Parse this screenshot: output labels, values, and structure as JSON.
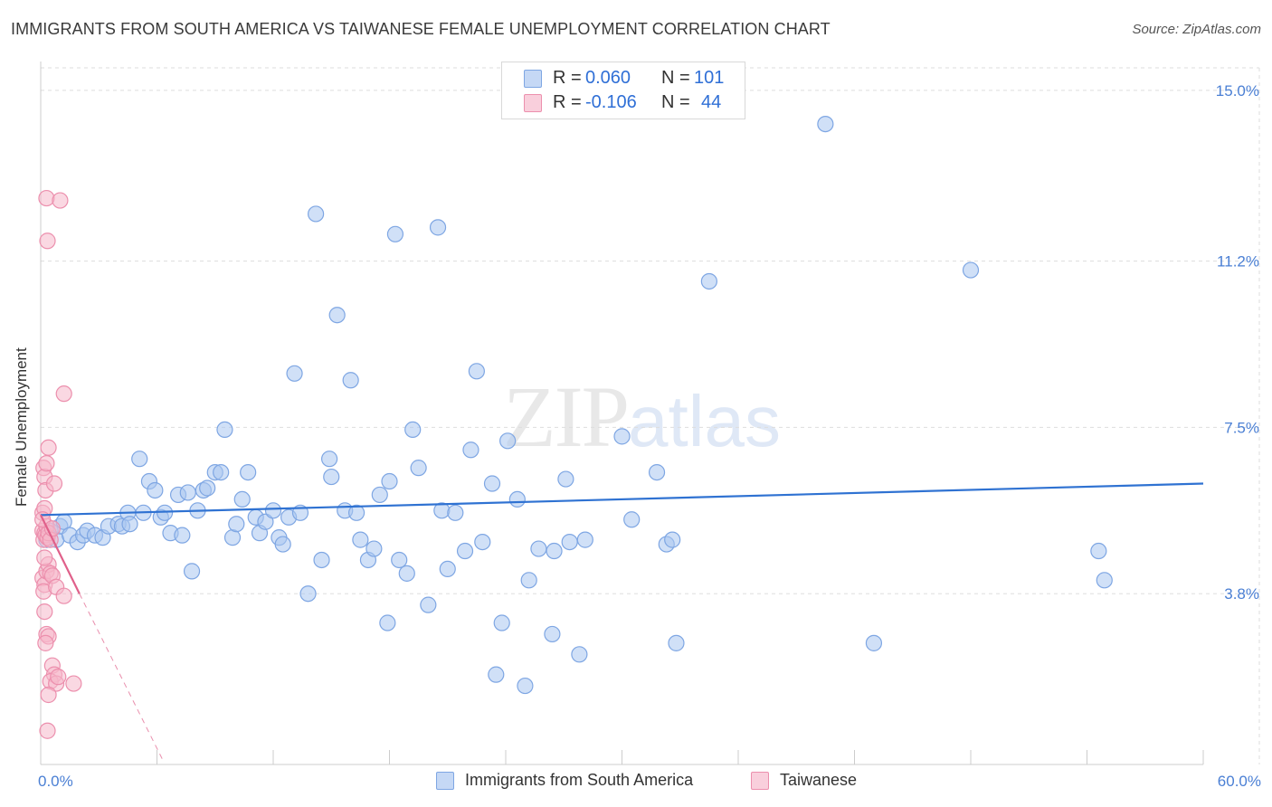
{
  "header": {
    "title": "IMMIGRANTS FROM SOUTH AMERICA VS TAIWANESE FEMALE UNEMPLOYMENT CORRELATION CHART",
    "source": "Source: ZipAtlas.com"
  },
  "watermark": {
    "zip": "ZIP",
    "atlas": "atlas"
  },
  "colors": {
    "blue_fill": "#a9c6f0",
    "blue_stroke": "#7ea6e3",
    "blue_line": "#2f72d2",
    "pink_fill": "#f6b8cb",
    "pink_stroke": "#ec8fad",
    "pink_line": "#e0608a",
    "tick_text": "#4a7fd4",
    "grid": "#dddddd"
  },
  "legend": {
    "series": [
      {
        "r_label": "R =",
        "r_value": "0.060",
        "n_label": "N =",
        "n_value": "101"
      },
      {
        "r_label": "R =",
        "r_value": "-0.106",
        "n_label": "N =",
        "n_value": "44"
      }
    ],
    "bottom": [
      "Immigrants from South America",
      "Taiwanese"
    ]
  },
  "chart_data": {
    "type": "scatter",
    "title": "IMMIGRANTS FROM SOUTH AMERICA VS TAIWANESE FEMALE UNEMPLOYMENT CORRELATION CHART",
    "xlabel": "",
    "ylabel": "Female Unemployment",
    "xlim": [
      0,
      60
    ],
    "ylim": [
      0,
      15.5
    ],
    "x_tick_labels": [
      "0.0%",
      "60.0%"
    ],
    "y_ticks": [
      3.8,
      7.5,
      11.2,
      15.0
    ],
    "y_tick_labels": [
      "3.8%",
      "7.5%",
      "11.2%",
      "15.0%"
    ],
    "grid": true,
    "legend_position": "top-center",
    "series": [
      {
        "name": "Immigrants from South America",
        "R": 0.06,
        "N": 101,
        "trend": {
          "x": [
            0,
            60
          ],
          "y": [
            5.55,
            6.25
          ]
        },
        "points": [
          [
            0.3,
            5.0
          ],
          [
            0.5,
            5.2
          ],
          [
            0.8,
            5.0
          ],
          [
            1.0,
            5.3
          ],
          [
            1.2,
            5.4
          ],
          [
            1.5,
            5.1
          ],
          [
            1.9,
            4.95
          ],
          [
            2.2,
            5.1
          ],
          [
            2.4,
            5.2
          ],
          [
            2.8,
            5.1
          ],
          [
            3.2,
            5.05
          ],
          [
            3.5,
            5.3
          ],
          [
            4.0,
            5.35
          ],
          [
            4.2,
            5.3
          ],
          [
            4.5,
            5.6
          ],
          [
            4.6,
            5.35
          ],
          [
            5.1,
            6.8
          ],
          [
            5.3,
            5.6
          ],
          [
            5.6,
            6.3
          ],
          [
            5.9,
            6.1
          ],
          [
            6.2,
            5.5
          ],
          [
            6.4,
            5.6
          ],
          [
            6.7,
            5.15
          ],
          [
            7.1,
            6.0
          ],
          [
            7.3,
            5.1
          ],
          [
            7.6,
            6.05
          ],
          [
            7.8,
            4.3
          ],
          [
            8.1,
            5.65
          ],
          [
            8.4,
            6.1
          ],
          [
            8.6,
            6.15
          ],
          [
            9.0,
            6.5
          ],
          [
            9.3,
            6.5
          ],
          [
            9.5,
            7.45
          ],
          [
            9.9,
            5.05
          ],
          [
            10.1,
            5.35
          ],
          [
            10.4,
            5.9
          ],
          [
            10.7,
            6.5
          ],
          [
            11.1,
            5.5
          ],
          [
            11.3,
            5.15
          ],
          [
            11.6,
            5.4
          ],
          [
            12.0,
            5.65
          ],
          [
            12.3,
            5.05
          ],
          [
            12.5,
            4.9
          ],
          [
            12.8,
            5.5
          ],
          [
            13.1,
            8.7
          ],
          [
            13.4,
            5.6
          ],
          [
            13.8,
            3.8
          ],
          [
            14.2,
            12.25
          ],
          [
            14.5,
            4.55
          ],
          [
            14.9,
            6.8
          ],
          [
            15.0,
            6.4
          ],
          [
            15.3,
            10.0
          ],
          [
            15.7,
            5.65
          ],
          [
            16.0,
            8.55
          ],
          [
            16.3,
            5.6
          ],
          [
            16.5,
            5.0
          ],
          [
            16.9,
            4.55
          ],
          [
            17.2,
            4.8
          ],
          [
            17.5,
            6.0
          ],
          [
            17.9,
            3.15
          ],
          [
            18.0,
            6.3
          ],
          [
            18.3,
            11.8
          ],
          [
            18.5,
            4.55
          ],
          [
            18.9,
            4.25
          ],
          [
            19.2,
            7.45
          ],
          [
            19.5,
            6.6
          ],
          [
            20.0,
            3.55
          ],
          [
            20.5,
            11.95
          ],
          [
            20.7,
            5.65
          ],
          [
            21.0,
            4.35
          ],
          [
            21.4,
            5.6
          ],
          [
            21.9,
            4.75
          ],
          [
            22.2,
            7.0
          ],
          [
            22.5,
            8.75
          ],
          [
            22.8,
            4.95
          ],
          [
            23.3,
            6.25
          ],
          [
            23.5,
            2.0
          ],
          [
            23.8,
            3.15
          ],
          [
            24.1,
            7.2
          ],
          [
            24.6,
            5.9
          ],
          [
            25.0,
            1.75
          ],
          [
            25.2,
            4.1
          ],
          [
            25.7,
            4.8
          ],
          [
            26.4,
            2.9
          ],
          [
            26.5,
            4.75
          ],
          [
            27.1,
            6.35
          ],
          [
            27.3,
            4.95
          ],
          [
            27.8,
            2.45
          ],
          [
            28.1,
            5.0
          ],
          [
            30.0,
            7.3
          ],
          [
            30.5,
            5.45
          ],
          [
            31.8,
            6.5
          ],
          [
            32.3,
            4.9
          ],
          [
            32.6,
            5.0
          ],
          [
            32.8,
            2.7
          ],
          [
            34.5,
            10.75
          ],
          [
            40.5,
            14.25
          ],
          [
            43.0,
            2.7
          ],
          [
            48.0,
            11.0
          ],
          [
            54.6,
            4.75
          ],
          [
            54.9,
            4.1
          ]
        ]
      },
      {
        "name": "Taiwanese",
        "R": -0.106,
        "N": 44,
        "trend": {
          "x": [
            0,
            2.0
          ],
          "y": [
            5.55,
            3.8
          ]
        },
        "trend_extension": {
          "x": [
            2.0,
            6.3
          ],
          "y": [
            3.8,
            0.1
          ]
        },
        "points": [
          [
            0.1,
            5.2
          ],
          [
            0.15,
            5.0
          ],
          [
            0.2,
            5.15
          ],
          [
            0.25,
            5.1
          ],
          [
            0.1,
            5.6
          ],
          [
            0.2,
            5.7
          ],
          [
            0.3,
            5.3
          ],
          [
            0.35,
            5.05
          ],
          [
            0.4,
            5.15
          ],
          [
            0.5,
            5.0
          ],
          [
            0.15,
            6.6
          ],
          [
            0.2,
            6.4
          ],
          [
            0.25,
            6.1
          ],
          [
            0.3,
            6.7
          ],
          [
            0.4,
            7.05
          ],
          [
            0.7,
            6.25
          ],
          [
            0.3,
            12.6
          ],
          [
            1.0,
            12.55
          ],
          [
            0.35,
            11.65
          ],
          [
            1.2,
            8.25
          ],
          [
            0.1,
            4.15
          ],
          [
            0.2,
            4.0
          ],
          [
            0.3,
            4.3
          ],
          [
            0.4,
            4.45
          ],
          [
            0.5,
            4.25
          ],
          [
            0.6,
            4.2
          ],
          [
            0.15,
            3.85
          ],
          [
            0.8,
            3.95
          ],
          [
            1.2,
            3.75
          ],
          [
            0.2,
            3.4
          ],
          [
            0.3,
            2.9
          ],
          [
            0.4,
            2.85
          ],
          [
            0.25,
            2.7
          ],
          [
            0.6,
            2.2
          ],
          [
            0.7,
            2.0
          ],
          [
            0.5,
            1.85
          ],
          [
            0.8,
            1.8
          ],
          [
            0.9,
            1.95
          ],
          [
            1.7,
            1.8
          ],
          [
            0.4,
            1.55
          ],
          [
            0.35,
            0.75
          ],
          [
            0.1,
            5.45
          ],
          [
            0.6,
            5.25
          ],
          [
            0.2,
            4.6
          ]
        ]
      }
    ]
  }
}
